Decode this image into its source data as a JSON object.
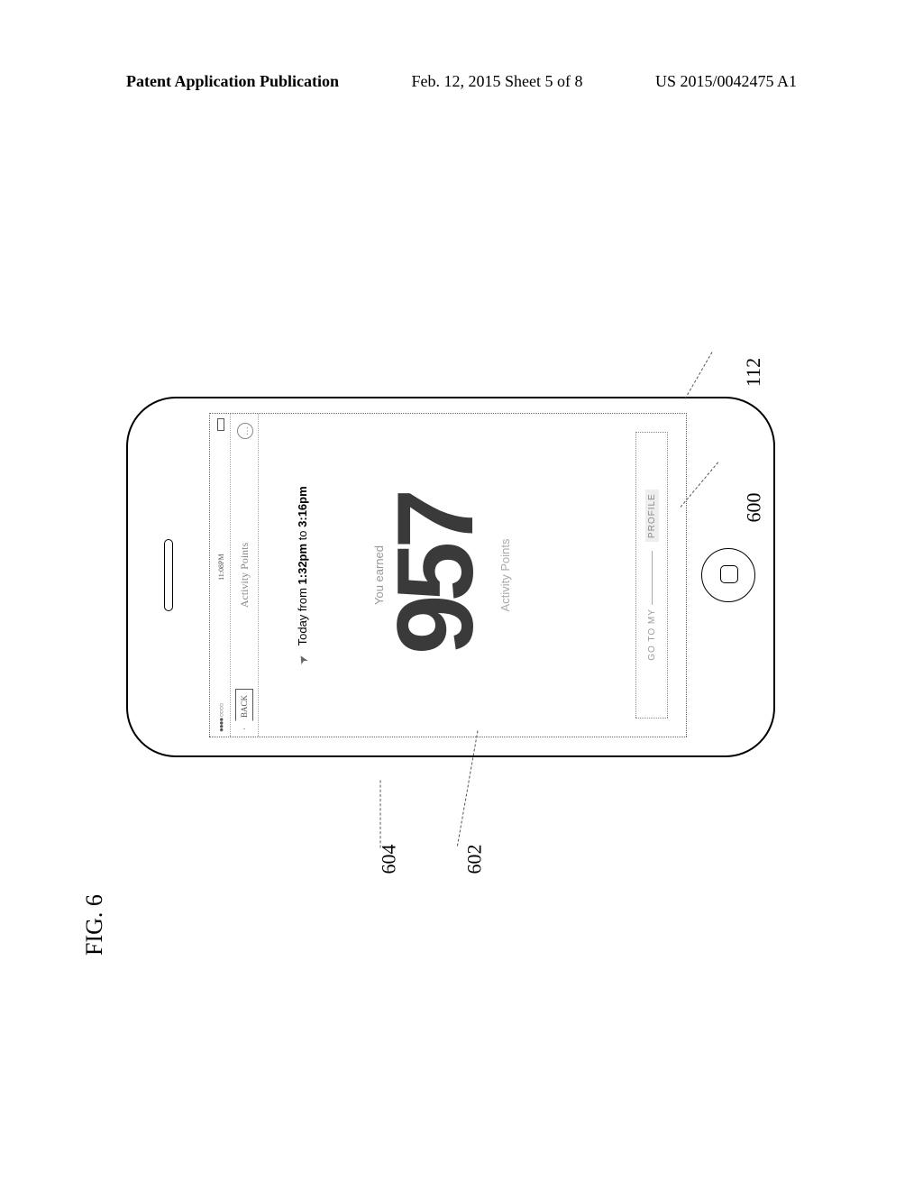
{
  "header": {
    "left": "Patent Application Publication",
    "center": "Feb. 12, 2015  Sheet 5 of 8",
    "right": "US 2015/0042475 A1"
  },
  "figure": {
    "label": "FIG. 6",
    "refs": {
      "phone": "112",
      "screen": "600",
      "points": "602",
      "timerow": "604"
    }
  },
  "phone": {
    "status": {
      "signal": "●●●●  ○○○○",
      "time": "11:08PM",
      "battery": ""
    },
    "nav": {
      "back": "BACK",
      "title": "Activity Points",
      "right_icon": "…"
    },
    "timerow": {
      "pin": "➤",
      "prefix": "Today from ",
      "start": "1:32pm",
      "mid": " to ",
      "end": "3:16pm"
    },
    "earned_label": "You earned",
    "big_number": "957",
    "points_label": "Activity Points",
    "profile_button": {
      "prefix": "GO TO MY",
      "suffix": "PROFILE"
    }
  }
}
